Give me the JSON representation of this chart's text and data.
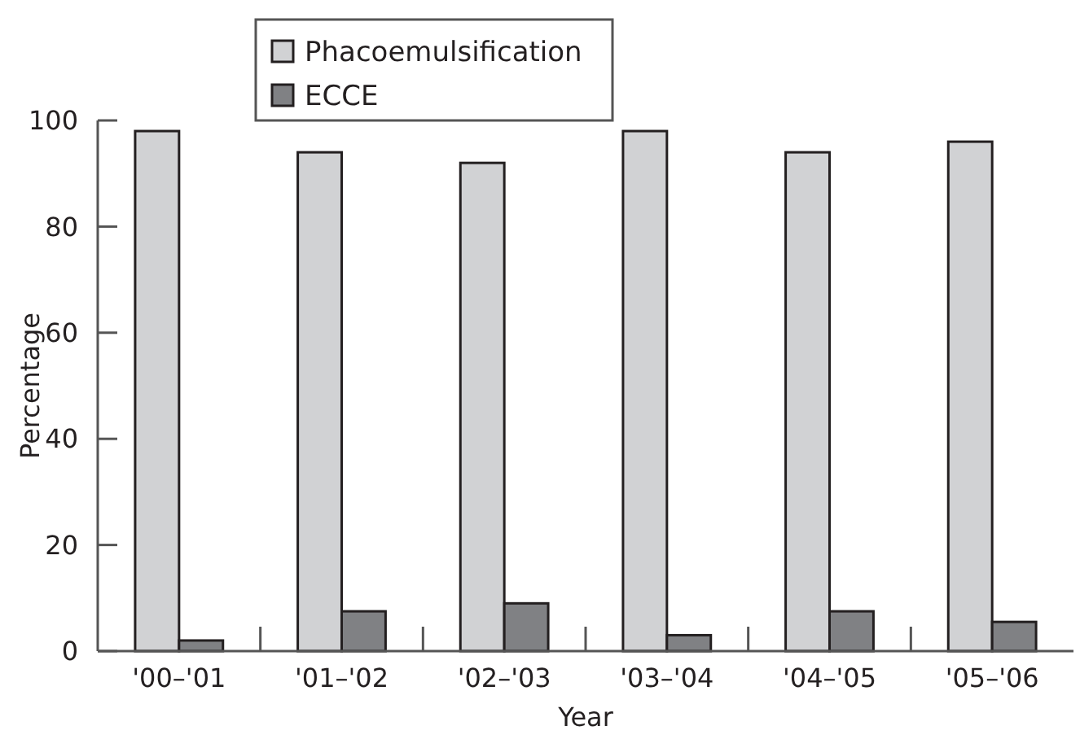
{
  "chart_data": {
    "type": "bar",
    "xlabel": "Year",
    "ylabel": "Percentage",
    "categories": [
      "'00–'01",
      "'01–'02",
      "'02–'03",
      "'03–'04",
      "'04–'05",
      "'05–'06"
    ],
    "series": [
      {
        "name": "Phacoemulsification",
        "color": "#d1d2d4",
        "values": [
          98,
          94,
          92,
          98,
          94,
          96
        ]
      },
      {
        "name": "ECCE",
        "color": "#808184",
        "values": [
          2,
          7.5,
          9,
          3,
          7.5,
          5.5
        ]
      }
    ],
    "ylim": [
      0,
      100
    ],
    "yticks": [
      0,
      20,
      40,
      60,
      80,
      100
    ],
    "grid": false,
    "legend": "top"
  }
}
